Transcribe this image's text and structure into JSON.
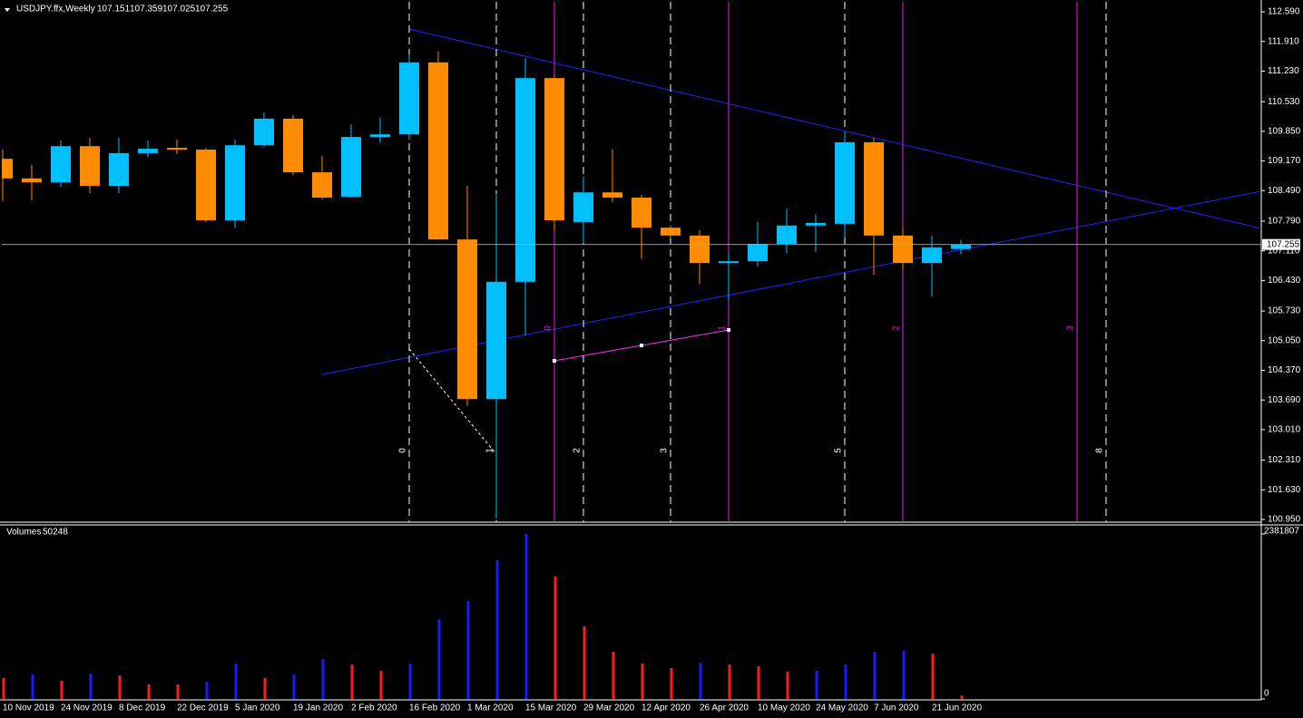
{
  "header": {
    "symbol": "USDJPY.ffx,Weekly"
  },
  "chart_data": [
    {
      "type": "candlestick",
      "categories": [
        "10 Nov 2019",
        null,
        "24 Nov 2019",
        null,
        "8 Dec 2019",
        null,
        "22 Dec 2019",
        null,
        "5 Jan 2020",
        null,
        "19 Jan 2020",
        null,
        "2 Feb 2020",
        null,
        "16 Feb 2020",
        null,
        "1 Mar 2020",
        null,
        "15 Mar 2020",
        null,
        "29 Mar 2020",
        null,
        "12 Apr 2020",
        null,
        "26 Apr 2020",
        null,
        "10 May 2020",
        null,
        "24 May 2020",
        null,
        "7 Jun 2020",
        null,
        "21 Jun 2020",
        null
      ],
      "open": [
        109.22,
        108.77,
        108.68,
        109.51,
        108.6,
        109.35,
        109.47,
        109.43,
        107.81,
        109.53,
        110.14,
        108.91,
        108.35,
        109.72,
        109.78,
        111.43,
        107.37,
        103.71,
        106.4,
        111.07,
        107.77,
        108.45,
        108.33,
        107.64,
        107.46,
        106.83,
        106.87,
        107.27,
        107.69,
        107.73,
        109.6,
        107.46,
        106.83,
        107.151
      ],
      "high": [
        109.43,
        109.08,
        109.64,
        109.7,
        109.7,
        109.64,
        109.66,
        109.47,
        109.66,
        110.28,
        110.22,
        109.29,
        110.01,
        110.16,
        111.61,
        111.68,
        108.6,
        108.43,
        111.53,
        111.11,
        108.81,
        109.43,
        108.39,
        107.69,
        107.58,
        107.06,
        107.77,
        108.08,
        107.95,
        109.85,
        109.7,
        107.62,
        107.46,
        107.359
      ],
      "low": [
        108.25,
        108.27,
        108.58,
        108.43,
        108.43,
        109.26,
        109.33,
        107.77,
        107.64,
        109.49,
        108.85,
        108.29,
        108.33,
        109.58,
        109.66,
        107.37,
        103.55,
        100.97,
        105.17,
        107.58,
        107.29,
        108.23,
        106.92,
        107.39,
        106.35,
        105.98,
        106.75,
        107.06,
        107.08,
        107.41,
        106.56,
        106.67,
        106.06,
        107.025
      ],
      "close": [
        108.77,
        108.68,
        109.51,
        108.6,
        109.35,
        109.45,
        109.43,
        107.81,
        109.53,
        110.14,
        108.91,
        108.33,
        109.72,
        109.78,
        111.43,
        107.37,
        103.71,
        106.4,
        111.07,
        107.81,
        108.45,
        108.33,
        107.64,
        107.46,
        106.83,
        106.87,
        107.27,
        107.69,
        107.75,
        109.6,
        107.46,
        106.83,
        107.19,
        107.255
      ],
      "up_color": "#00bfff",
      "down_color": "#ff8c00",
      "ylim": [
        100.888,
        112.819
      ],
      "yticks": [
        {
          "value": 112.59,
          "label": "112.590"
        },
        {
          "value": 111.91,
          "label": "111.910"
        },
        {
          "value": 111.23,
          "label": "111.230"
        },
        {
          "value": 110.53,
          "label": "110.530"
        },
        {
          "value": 109.85,
          "label": "109.850"
        },
        {
          "value": 109.17,
          "label": "109.170"
        },
        {
          "value": 108.49,
          "label": "108.490"
        },
        {
          "value": 107.79,
          "label": "107.790"
        },
        {
          "value": 107.11,
          "label": "107.110"
        },
        {
          "value": 106.43,
          "label": "106.430"
        },
        {
          "value": 105.73,
          "label": "105.730"
        },
        {
          "value": 105.05,
          "label": "105.050"
        },
        {
          "value": 104.37,
          "label": "104.370"
        },
        {
          "value": 103.69,
          "label": "103.690"
        },
        {
          "value": 103.01,
          "label": "103.010"
        },
        {
          "value": 102.31,
          "label": "102.310"
        },
        {
          "value": 101.63,
          "label": "101.630"
        },
        {
          "value": 100.95,
          "label": "100.950"
        }
      ]
    },
    {
      "type": "volume",
      "title": "Volumes",
      "values": [
        301000,
        353000,
        262000,
        366000,
        340000,
        209000,
        209000,
        249000,
        510000,
        301000,
        353000,
        576000,
        497000,
        406000,
        510000,
        1152000,
        1413000,
        2002000,
        2381807,
        1767000,
        1047000,
        681000,
        510000,
        445000,
        523000,
        497000,
        471000,
        393000,
        406000,
        497000,
        681000,
        694000,
        654000,
        50248
      ],
      "colors": [
        "#ff1a1a",
        "#1a1aff",
        "#ff1a1a",
        "#1a1aff",
        "#ff1a1a",
        "#ff1a1a",
        "#ff1a1a",
        "#1a1aff",
        "#1a1aff",
        "#ff1a1a",
        "#1a1aff",
        "#1a1aff",
        "#ff1a1a",
        "#ff1a1a",
        "#1a1aff",
        "#1a1aff",
        "#1a1aff",
        "#1a1aff",
        "#1a1aff",
        "#ff1a1a",
        "#ff1a1a",
        "#ff1a1a",
        "#ff1a1a",
        "#ff1a1a",
        "#1a1aff",
        "#ff1a1a",
        "#ff1a1a",
        "#ff1a1a",
        "#1a1aff",
        "#1a1aff",
        "#1a1aff",
        "#1a1aff",
        "#ff1a1a",
        "#ff1a1a"
      ],
      "ylim": [
        0,
        2381807
      ],
      "yticks": [
        0,
        2381807
      ]
    }
  ],
  "annotations": {
    "fib_time_zones_a": [
      "0",
      "1",
      "2",
      "3",
      "5",
      "8"
    ],
    "fib_time_zones_b": [
      "0",
      "1",
      "2",
      "3"
    ]
  }
}
